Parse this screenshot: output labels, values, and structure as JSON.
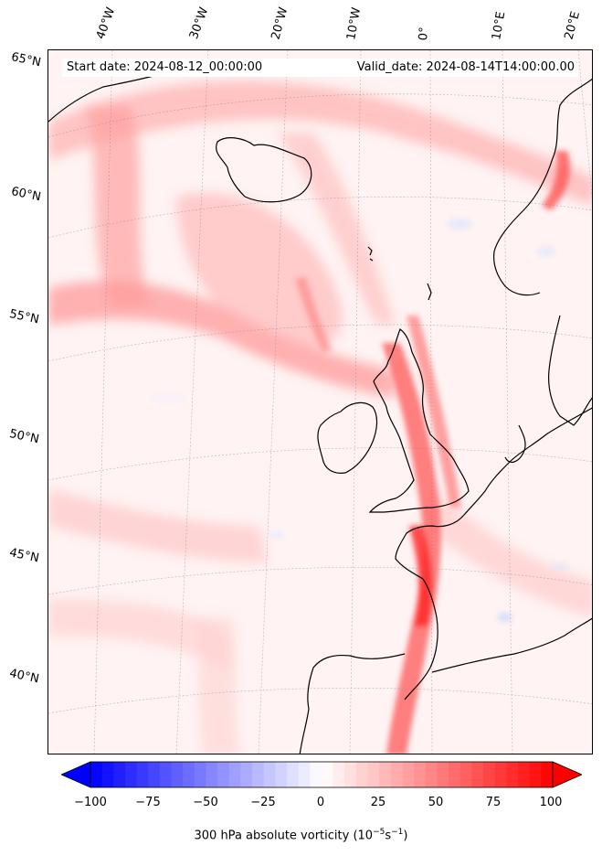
{
  "map": {
    "start_date": "Start date: 2024-08-12_00:00:00",
    "valid_date": "Valid_date: 2024-08-14T14:00:00.00",
    "longitude_labels": [
      "40°W",
      "30°W",
      "20°W",
      "10°W",
      "0°",
      "10°E",
      "20°E"
    ],
    "latitude_labels": [
      "65°N",
      "60°N",
      "55°N",
      "50°N",
      "45°N",
      "40°N"
    ],
    "field": "300 hPa absolute vorticity",
    "projection": "conic",
    "extent": {
      "lon_min": -45,
      "lon_max": 22,
      "lat_min": 36,
      "lat_max": 66
    },
    "gridlines": true
  },
  "colorbar": {
    "label": "300 hPa absolute vorticity (10",
    "label_exp1": "−5",
    "label_mid": "s",
    "label_exp2": "−1",
    "label_end": ")",
    "ticks": [
      "−100",
      "−75",
      "−50",
      "−25",
      "0",
      "25",
      "50",
      "75",
      "100"
    ],
    "tick_values": [
      -100,
      -75,
      -50,
      -25,
      0,
      25,
      50,
      75,
      100
    ],
    "range": [
      -100,
      100
    ],
    "extend": "both",
    "colors": {
      "min": "#0000ff",
      "mid": "#ffffff",
      "max": "#ff0000"
    }
  }
}
